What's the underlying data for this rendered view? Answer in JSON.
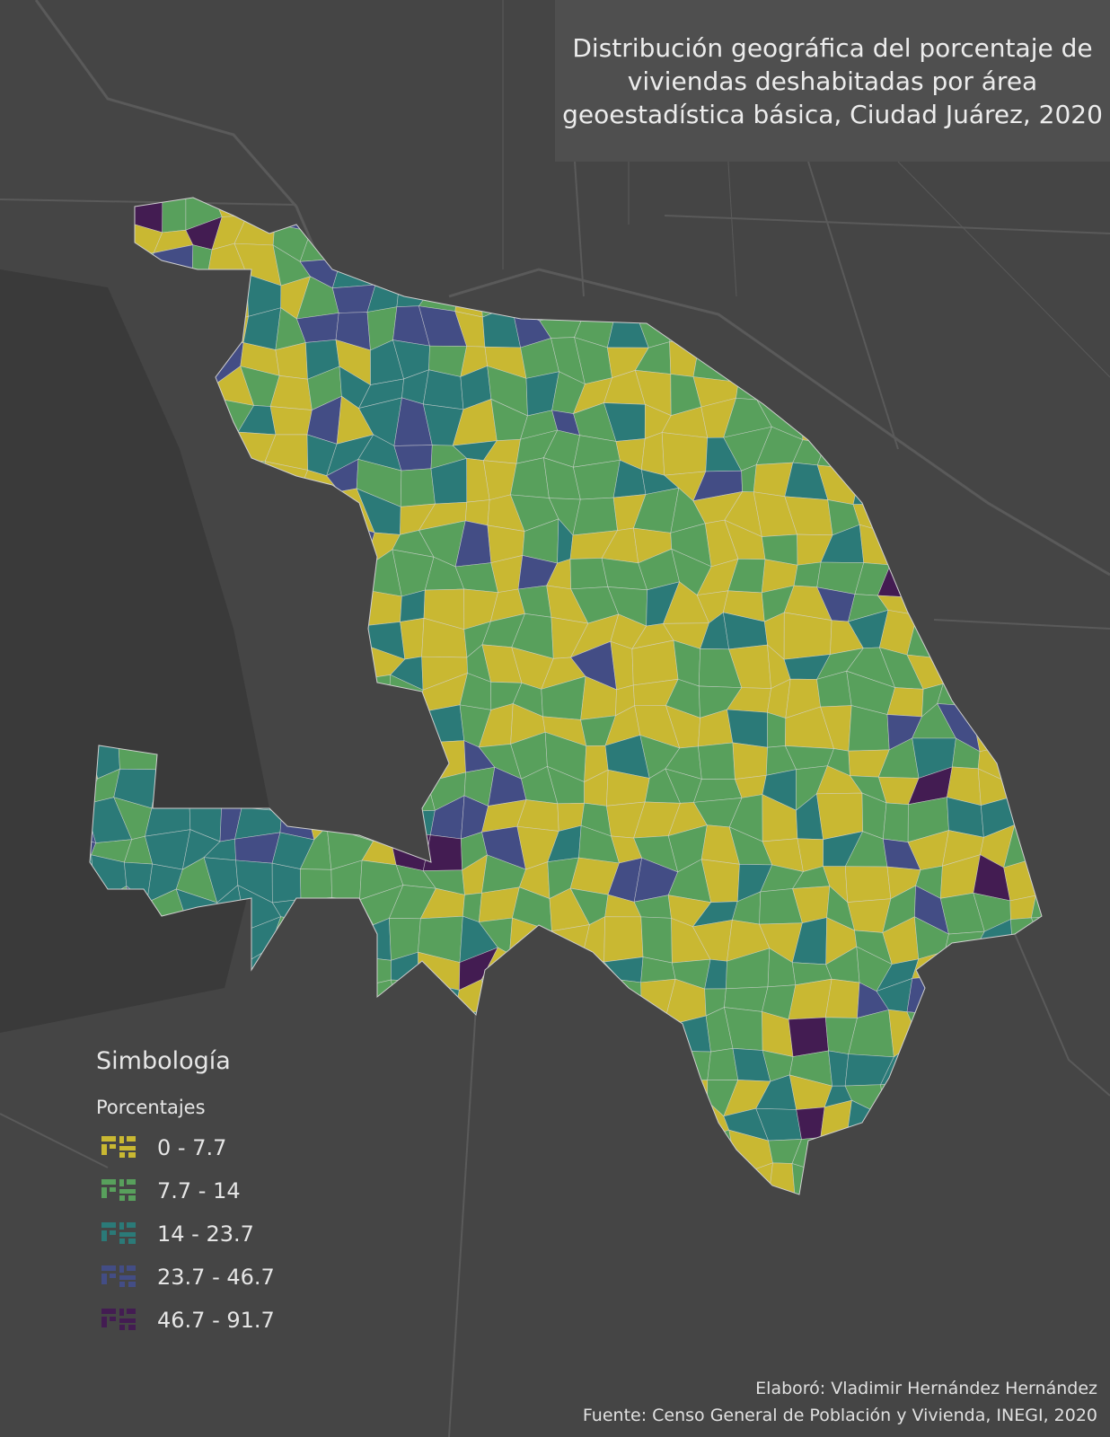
{
  "header": {
    "title": [
      "Distribución geográfica del porcentaje de",
      "viviendas deshabitadas por área",
      "geoestadística básica, Ciudad Juárez, 2020"
    ]
  },
  "legend": {
    "title": "Simbología",
    "subtitle": "Porcentajes",
    "classes": [
      {
        "label": "0 - 7.7",
        "color": "#c9b832"
      },
      {
        "label": "7.7 - 14",
        "color": "#58a05c"
      },
      {
        "label": "14 - 23.7",
        "color": "#2b7a78"
      },
      {
        "label": "23.7 - 46.7",
        "color": "#434d85"
      },
      {
        "label": "46.7 - 91.7",
        "color": "#431c52"
      }
    ]
  },
  "credits": [
    "Elaboró: Vladimir Hernández Hernández",
    "Fuente: Censo General de Población y Vivienda, INEGI, 2020"
  ]
}
